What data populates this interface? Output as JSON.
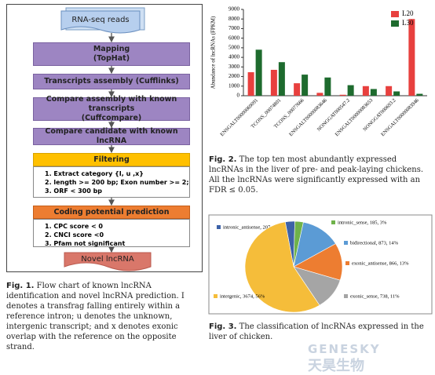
{
  "flowchart": {
    "input": "RNA-seq reads",
    "steps": [
      [
        "Mapping",
        "(TopHat)"
      ],
      [
        "Transcripts assembly (Cufflinks)"
      ],
      [
        "Compare assembly with known transcripts",
        "(Cuffcompare)"
      ],
      [
        "Compare candidate with known lncRNA"
      ]
    ],
    "filtering": {
      "title": "Filtering",
      "items": [
        "1. Extract category {I, u ,x}",
        "2. length >= 200 bp; Exon number >= 2;",
        "3. ORF < 300 bp"
      ]
    },
    "coding": {
      "title": "Coding potential prediction",
      "items": [
        "1. CPC score < 0",
        "2. CNCI score <0",
        "3. Pfam not significant"
      ]
    },
    "output": "Novel lncRNA"
  },
  "captions": [
    {
      "label": "Fig. 1.",
      "text": "Flow chart of known lncRNA identification and novel lncRNA prediction. I denotes a transfrag falling entirely within a reference intron; u denotes the unknown, intergenic transcript; and x denotes exonic overlap with the reference on the opposite strand."
    },
    {
      "label": "Fig. 2.",
      "text": "The top ten most abundantly expressed lncRNAs in the liver of pre- and peak-laying chickens. All the lncRNAs were significantly expressed with an FDR ≤ 0.05."
    },
    {
      "label": "Fig. 3.",
      "text": "The classification of lncRNAs expressed in the liver of chicken."
    }
  ],
  "watermark": [
    "GENESKY",
    "天昊生物"
  ],
  "chart_data": [
    {
      "type": "bar",
      "y_label": "Abundance of lncRNAs (FPKM)",
      "categories": [
        "ENSGALT00000069091",
        "TCONS_00074801",
        "TCONS_00077666",
        "ENSGALT00000083646",
        "NONGGAT000547.2",
        "ENSGALT00000083653",
        "NONGGAT000693.2",
        "ENSGALT00000083946"
      ],
      "series": [
        {
          "name": "L20",
          "color": "#e8403e",
          "values": [
            2450,
            2700,
            1300,
            300,
            100,
            1000,
            1000,
            8000
          ]
        },
        {
          "name": "L30",
          "color": "#1e6b2e",
          "values": [
            4800,
            3500,
            2200,
            1900,
            1100,
            700,
            450,
            200
          ]
        }
      ],
      "ylim": [
        0,
        9000
      ],
      "yticks": [
        0,
        1000,
        2000,
        3000,
        4000,
        5000,
        6000,
        7000,
        8000,
        9000
      ],
      "legend": "top-right"
    },
    {
      "type": "pie",
      "values": [
        207,
        185,
        873,
        866,
        738,
        3674
      ],
      "value_labels": [
        "intronic_antisense, 207, 3%",
        "intronic_sense, 185, 3%",
        "bidirectional, 873, 14%",
        "exonic_antisense, 866, 13%",
        "exonic_sense, 738, 11%",
        "intergenic, 3674, 56%"
      ],
      "colors": [
        "#3d62a8",
        "#6fb24a",
        "#5b9bd5",
        "#ed7d31",
        "#a5a5a5",
        "#f5bd3a"
      ]
    }
  ]
}
